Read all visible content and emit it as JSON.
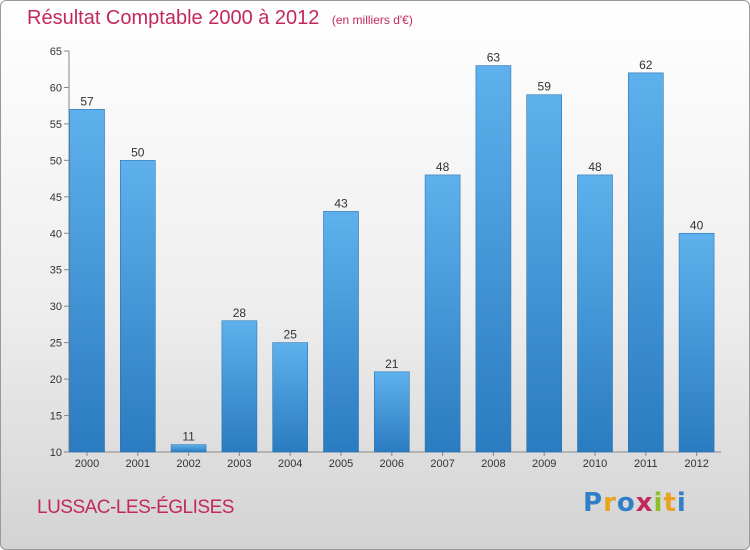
{
  "chart_data": {
    "type": "bar",
    "title": "Résultat Comptable 2000 à 2012",
    "subtitle": "(en milliers d'€)",
    "categories": [
      "2000",
      "2001",
      "2002",
      "2003",
      "2004",
      "2005",
      "2006",
      "2007",
      "2008",
      "2009",
      "2010",
      "2011",
      "2012"
    ],
    "values": [
      57,
      50,
      11,
      28,
      25,
      43,
      21,
      48,
      63,
      59,
      48,
      62,
      40
    ],
    "ylim": [
      10,
      65
    ],
    "yticks": [
      10,
      15,
      20,
      25,
      30,
      35,
      40,
      45,
      50,
      55,
      60,
      65
    ],
    "grid": false,
    "bar_color": "#4a9fdf"
  },
  "footer": {
    "commune": "LUSSAC-LES-ÉGLISES",
    "logo_letters": [
      "P",
      "r",
      "o",
      "x",
      "i",
      "t",
      "i"
    ],
    "logo_colors": [
      "#2f7fc9",
      "#e8a321",
      "#2f7fc9",
      "#c3285d",
      "#8fbf28",
      "#e8a321",
      "#2f7fc9"
    ]
  }
}
